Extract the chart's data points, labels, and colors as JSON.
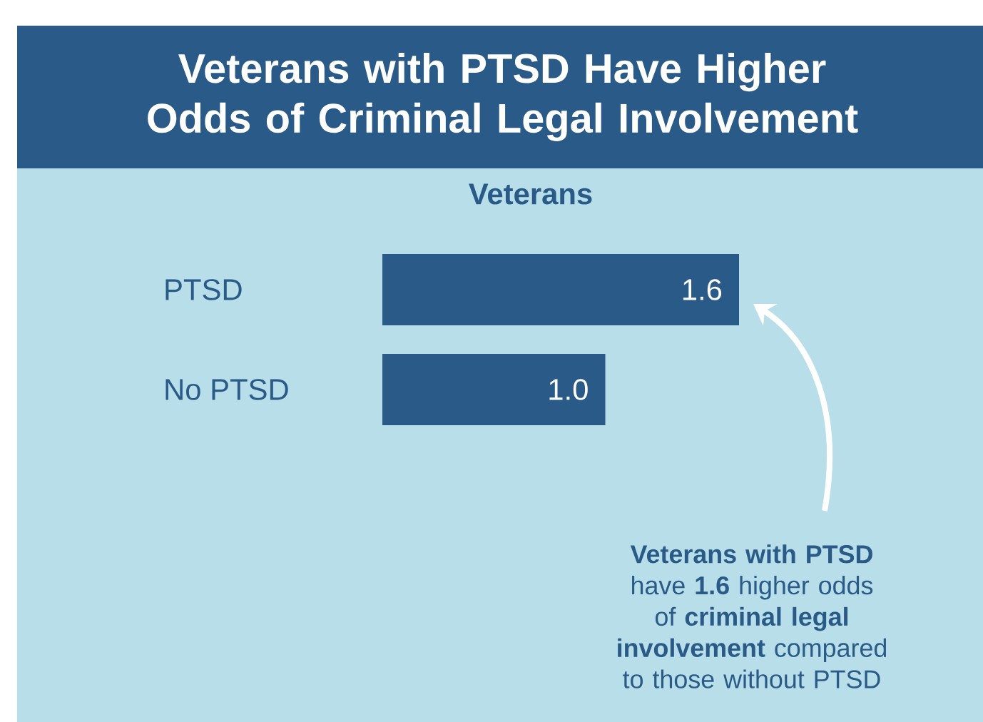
{
  "chart_data": {
    "type": "bar",
    "orientation": "horizontal",
    "title": "Veterans with PTSD Have Higher Odds of Criminal Legal Involvement",
    "subtitle": "Veterans",
    "categories": [
      "PTSD",
      "No PTSD"
    ],
    "values": [
      1.6,
      1.0
    ],
    "color": "#2a5a87",
    "xlim": [
      0,
      1.6
    ],
    "tick_labels": "y",
    "value_labels": [
      "1.6",
      "1.0"
    ],
    "annotations": [
      "**Veterans with PTSD** have **1.6** higher odds of **criminal legal involvement** compared to those without PTSD"
    ]
  }
}
